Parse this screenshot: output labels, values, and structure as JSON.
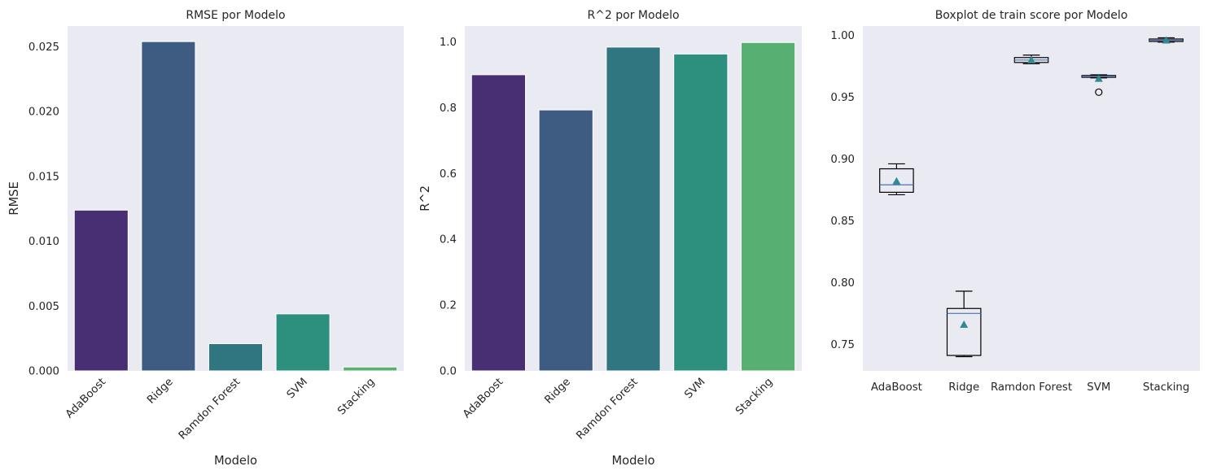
{
  "chart_data": [
    {
      "type": "bar",
      "title": "RMSE por Modelo",
      "xlabel": "Modelo",
      "ylabel": "RMSE",
      "categories": [
        "AdaBoost",
        "Ridge",
        "Ramdon Forest",
        "SVM",
        "Stacking"
      ],
      "values": [
        0.0124,
        0.0254,
        0.0021,
        0.0044,
        0.0003
      ],
      "ylim": [
        0,
        0.0266
      ],
      "yticks": [
        "0.000",
        "0.005",
        "0.010",
        "0.015",
        "0.020",
        "0.025"
      ],
      "colors": [
        "#482f73",
        "#3e5c81",
        "#307681",
        "#2d907e",
        "#57b072"
      ],
      "grid": false
    },
    {
      "type": "bar",
      "title": "R^2 por Modelo",
      "xlabel": "Modelo",
      "ylabel": "R^2",
      "categories": [
        "AdaBoost",
        "Ridge",
        "Ramdon Forest",
        "SVM",
        "Stacking"
      ],
      "values": [
        0.9,
        0.793,
        0.984,
        0.963,
        0.998
      ],
      "ylim": [
        0,
        1.048
      ],
      "yticks": [
        "0.0",
        "0.2",
        "0.4",
        "0.6",
        "0.8",
        "1.0"
      ],
      "colors": [
        "#482f73",
        "#3e5c81",
        "#307681",
        "#2d907e",
        "#57b072"
      ],
      "grid": false
    },
    {
      "type": "box",
      "title": "Boxplot de train score por Modelo",
      "xlabel": "",
      "ylabel": "",
      "categories": [
        "AdaBoost",
        "Ridge",
        "Ramdon Forest",
        "SVM",
        "Stacking"
      ],
      "ylim": [
        0.7285,
        1.0075
      ],
      "yticks": [
        "0.75",
        "0.80",
        "0.85",
        "0.90",
        "0.95",
        "1.00"
      ],
      "boxes": [
        {
          "whislo": 0.871,
          "q1": 0.873,
          "med": 0.879,
          "q3": 0.892,
          "whishi": 0.896,
          "mean": 0.882,
          "fliers": []
        },
        {
          "whislo": 0.74,
          "q1": 0.741,
          "med": 0.775,
          "q3": 0.779,
          "whishi": 0.793,
          "mean": 0.766,
          "fliers": []
        },
        {
          "whislo": 0.977,
          "q1": 0.978,
          "med": 0.98,
          "q3": 0.982,
          "whishi": 0.984,
          "mean": 0.98,
          "fliers": []
        },
        {
          "whislo": 0.9655,
          "q1": 0.966,
          "med": 0.967,
          "q3": 0.9675,
          "whishi": 0.968,
          "mean": 0.965,
          "fliers": [
            0.954
          ]
        },
        {
          "whislo": 0.9945,
          "q1": 0.995,
          "med": 0.996,
          "q3": 0.997,
          "whishi": 0.998,
          "mean": 0.996,
          "fliers": []
        }
      ],
      "median_color": "#4c72b0",
      "mean_color": "#2e8a93",
      "grid": false
    }
  ]
}
